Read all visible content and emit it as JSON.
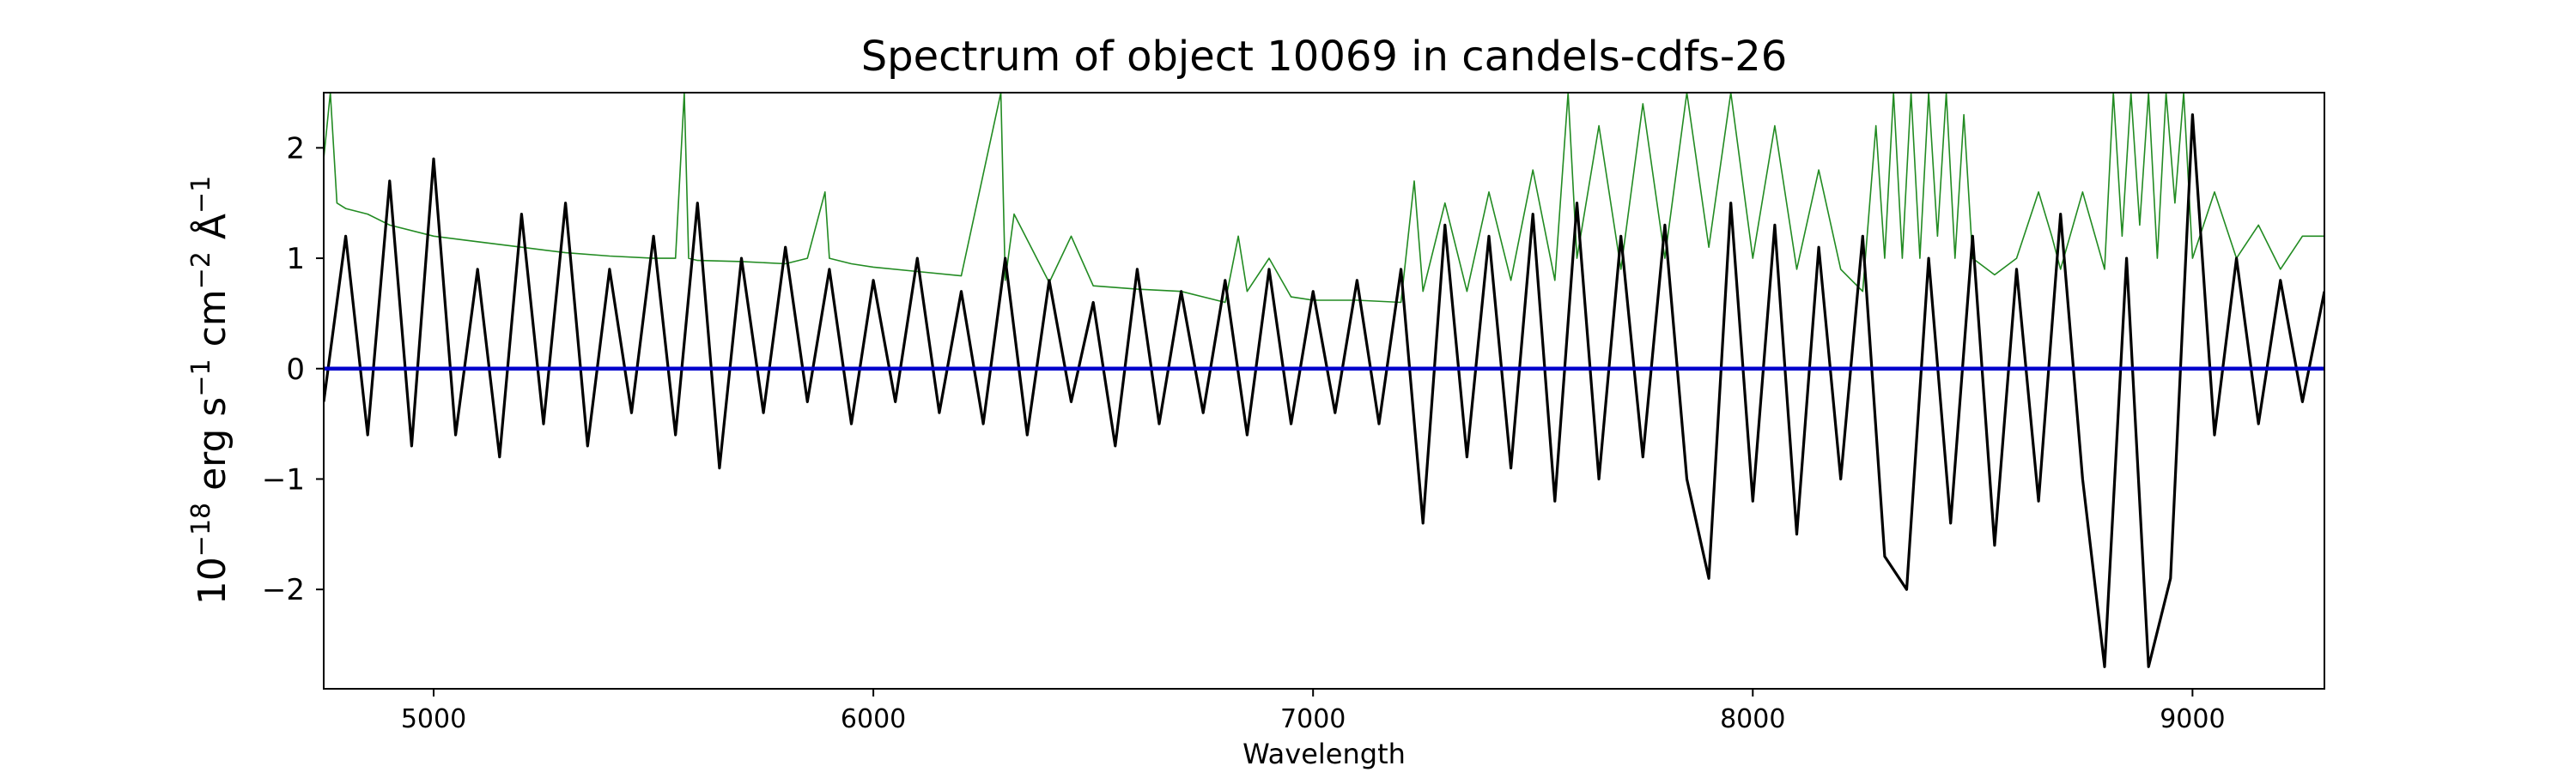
{
  "chart_data": {
    "type": "line",
    "title": "Spectrum of object 10069 in candels-cdfs-26",
    "xlabel": "Wavelength",
    "ylabel": {
      "base": "10",
      "exp": "−18",
      "unit_parts": [
        {
          "text": " erg s",
          "sup": "−1"
        },
        {
          "text": " cm",
          "sup": "−2"
        },
        {
          "text": " Å",
          "sup": "−1"
        }
      ]
    },
    "xlim": [
      4750,
      9300
    ],
    "ylim": [
      -2.9,
      2.5
    ],
    "xticks": [
      5000,
      6000,
      7000,
      8000,
      9000
    ],
    "yticks": [
      -2,
      -1,
      0,
      1,
      2
    ],
    "grid": false,
    "colors": {
      "spectrum": "#000000",
      "sky": "#228b22",
      "zero": "#0000cc"
    },
    "series": [
      {
        "role": "spectrum",
        "x": [
          4750,
          4800,
          4850,
          4900,
          4950,
          5000,
          5050,
          5100,
          5150,
          5200,
          5250,
          5300,
          5350,
          5400,
          5450,
          5500,
          5550,
          5600,
          5650,
          5700,
          5750,
          5800,
          5850,
          5900,
          5950,
          6000,
          6050,
          6100,
          6150,
          6200,
          6250,
          6300,
          6350,
          6400,
          6450,
          6500,
          6550,
          6600,
          6650,
          6700,
          6750,
          6800,
          6850,
          6900,
          6950,
          7000,
          7050,
          7100,
          7150,
          7200,
          7250,
          7300,
          7350,
          7400,
          7450,
          7500,
          7550,
          7600,
          7650,
          7700,
          7750,
          7800,
          7850,
          7900,
          7950,
          8000,
          8050,
          8100,
          8150,
          8200,
          8250,
          8300,
          8350,
          8400,
          8450,
          8500,
          8550,
          8600,
          8650,
          8700,
          8750,
          8800,
          8850,
          8900,
          8950,
          9000,
          9050,
          9100,
          9150,
          9200,
          9250,
          9300
        ],
        "y": [
          -0.3,
          1.2,
          -0.6,
          1.7,
          -0.7,
          1.9,
          -0.6,
          0.9,
          -0.8,
          1.4,
          -0.5,
          1.5,
          -0.7,
          0.9,
          -0.4,
          1.2,
          -0.6,
          1.5,
          -0.9,
          1.0,
          -0.4,
          1.1,
          -0.3,
          0.9,
          -0.5,
          0.8,
          -0.3,
          1.0,
          -0.4,
          0.7,
          -0.5,
          1.0,
          -0.6,
          0.8,
          -0.3,
          0.6,
          -0.7,
          0.9,
          -0.5,
          0.7,
          -0.4,
          0.8,
          -0.6,
          0.9,
          -0.5,
          0.7,
          -0.4,
          0.8,
          -0.5,
          0.9,
          -1.4,
          1.3,
          -0.8,
          1.2,
          -0.9,
          1.4,
          -1.2,
          1.5,
          -1.0,
          1.2,
          -0.8,
          1.3,
          -1.0,
          -1.9,
          1.5,
          -1.2,
          1.3,
          -1.5,
          1.1,
          -1.0,
          1.2,
          -1.7,
          -2.0,
          1.0,
          -1.4,
          1.2,
          -1.6,
          0.9,
          -1.2,
          1.4,
          -1.0,
          -2.7,
          1.0,
          -2.7,
          -1.9,
          2.3,
          -0.6,
          1.0,
          -0.5,
          0.8,
          -0.3,
          0.7
        ]
      },
      {
        "role": "sky",
        "x": [
          4750,
          4765,
          4780,
          4800,
          4850,
          4900,
          5000,
          5100,
          5200,
          5300,
          5400,
          5500,
          5550,
          5570,
          5580,
          5600,
          5700,
          5800,
          5850,
          5890,
          5900,
          5950,
          6000,
          6100,
          6200,
          6290,
          6300,
          6320,
          6400,
          6450,
          6500,
          6600,
          6700,
          6800,
          6830,
          6850,
          6900,
          6950,
          7000,
          7100,
          7200,
          7230,
          7250,
          7300,
          7350,
          7400,
          7450,
          7500,
          7550,
          7580,
          7600,
          7650,
          7700,
          7750,
          7800,
          7850,
          7900,
          7950,
          8000,
          8050,
          8100,
          8150,
          8200,
          8250,
          8280,
          8300,
          8320,
          8340,
          8360,
          8380,
          8400,
          8420,
          8440,
          8460,
          8480,
          8500,
          8550,
          8600,
          8650,
          8680,
          8700,
          8750,
          8800,
          8820,
          8840,
          8860,
          8880,
          8900,
          8920,
          8940,
          8960,
          8980,
          9000,
          9050,
          9100,
          9150,
          9200,
          9250,
          9300
        ],
        "y": [
          1.9,
          2.5,
          1.5,
          1.45,
          1.4,
          1.3,
          1.2,
          1.15,
          1.1,
          1.05,
          1.02,
          1.0,
          1.0,
          2.5,
          1.0,
          0.98,
          0.97,
          0.95,
          1.0,
          1.6,
          1.0,
          0.95,
          0.92,
          0.88,
          0.84,
          2.5,
          0.8,
          1.4,
          0.78,
          1.2,
          0.75,
          0.72,
          0.7,
          0.6,
          1.2,
          0.7,
          1.0,
          0.65,
          0.62,
          0.62,
          0.6,
          1.7,
          0.7,
          1.5,
          0.7,
          1.6,
          0.8,
          1.8,
          0.8,
          2.5,
          1.0,
          2.2,
          0.9,
          2.4,
          1.0,
          2.5,
          1.1,
          2.5,
          1.0,
          2.2,
          0.9,
          1.8,
          0.9,
          0.7,
          2.2,
          1.0,
          2.5,
          1.0,
          2.5,
          1.0,
          2.5,
          1.2,
          2.5,
          1.0,
          2.3,
          1.0,
          0.85,
          1.0,
          1.6,
          1.2,
          0.9,
          1.6,
          0.9,
          2.5,
          1.2,
          2.5,
          1.3,
          2.5,
          1.0,
          2.5,
          1.5,
          2.5,
          1.0,
          1.6,
          1.0,
          1.3,
          0.9,
          1.2,
          1.2
        ]
      },
      {
        "role": "zero",
        "x": [
          4750,
          9300
        ],
        "y": [
          0,
          0
        ]
      }
    ]
  }
}
